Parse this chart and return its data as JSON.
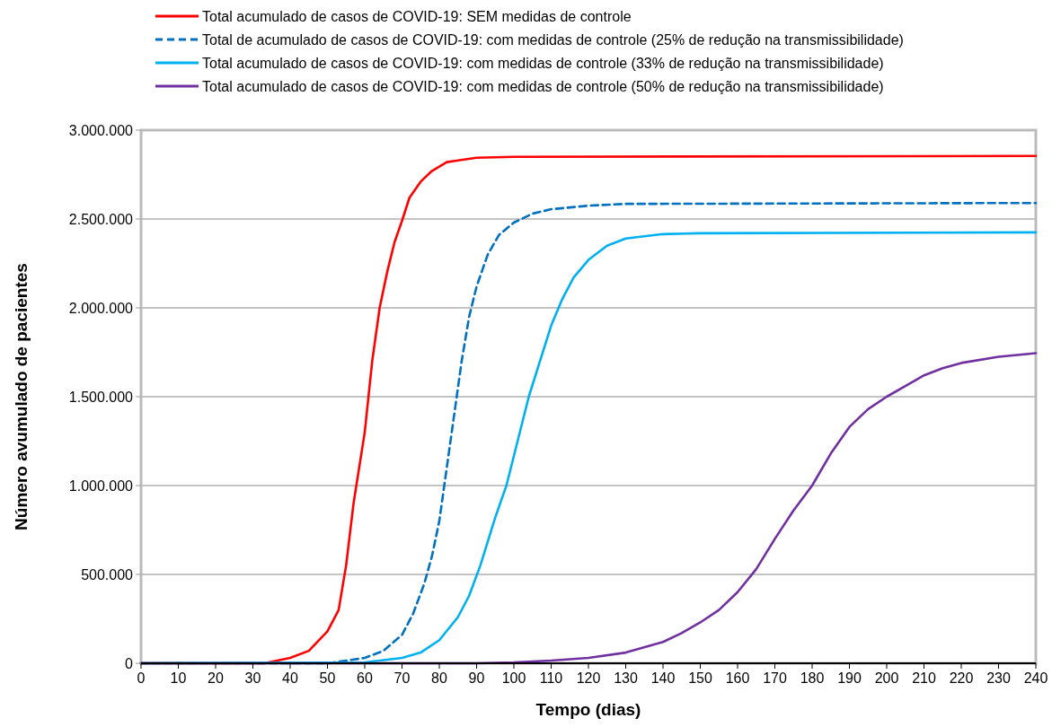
{
  "chart_data": {
    "type": "line",
    "xlabel": "Tempo (dias)",
    "ylabel": "Número avumulado de pacientes",
    "xlim": [
      0,
      240
    ],
    "xticks": [
      0,
      10,
      20,
      30,
      40,
      50,
      60,
      70,
      80,
      90,
      100,
      110,
      120,
      130,
      140,
      150,
      160,
      170,
      180,
      190,
      200,
      210,
      220,
      230,
      240
    ],
    "ylim": [
      0,
      3000000
    ],
    "yticks": [
      {
        "value": 0,
        "label": "0"
      },
      {
        "value": 500000,
        "label": "500.000"
      },
      {
        "value": 1000000,
        "label": "1.000.000"
      },
      {
        "value": 1500000,
        "label": "1.500.000"
      },
      {
        "value": 2000000,
        "label": "2.000.000"
      },
      {
        "value": 2500000,
        "label": "2.500.000"
      },
      {
        "value": 3000000,
        "label": "3.000.000"
      }
    ],
    "grid": "y",
    "legend": "top",
    "marker": "none",
    "series": [
      {
        "name": "Total acumulado de casos de COVID-19: SEM medidas de controle",
        "color": "#ff0000",
        "line_style": "solid",
        "x": [
          0,
          33,
          40,
          45,
          50,
          53,
          55,
          57,
          60,
          62,
          64,
          66,
          68,
          70,
          72,
          75,
          78,
          82,
          90,
          100,
          240
        ],
        "values": [
          0,
          0,
          30000,
          70000,
          180000,
          300000,
          550000,
          900000,
          1300000,
          1700000,
          2000000,
          2200000,
          2370000,
          2490000,
          2620000,
          2710000,
          2770000,
          2820000,
          2845000,
          2850000,
          2855000
        ]
      },
      {
        "name": "Total de acumulado de casos de COVID-19: com medidas de controle (25% de redução na transmissibilidade)",
        "color": "#0070c0",
        "line_style": "dashed",
        "x": [
          0,
          50,
          60,
          65,
          70,
          73,
          76,
          78,
          80,
          82,
          84,
          86,
          88,
          90,
          93,
          96,
          100,
          105,
          110,
          120,
          130,
          240
        ],
        "values": [
          0,
          0,
          30000,
          70000,
          160000,
          280000,
          450000,
          600000,
          800000,
          1100000,
          1400000,
          1700000,
          1950000,
          2120000,
          2300000,
          2410000,
          2480000,
          2530000,
          2555000,
          2575000,
          2585000,
          2590000
        ]
      },
      {
        "name": "Total acumulado de casos de COVID-19: com medidas de controle (33% de redução na transmissibilidade)",
        "color": "#00b0f0",
        "line_style": "solid",
        "x": [
          0,
          60,
          70,
          75,
          80,
          85,
          88,
          91,
          95,
          98,
          101,
          104,
          107,
          110,
          113,
          116,
          120,
          125,
          130,
          140,
          150,
          240
        ],
        "values": [
          0,
          5000,
          30000,
          60000,
          130000,
          260000,
          380000,
          550000,
          820000,
          1000000,
          1250000,
          1500000,
          1700000,
          1900000,
          2050000,
          2170000,
          2270000,
          2350000,
          2390000,
          2415000,
          2420000,
          2425000
        ]
      },
      {
        "name": "Total acumulado de casos de COVID-19: com medidas de controle (50% de redução na transmissibilidade)",
        "color": "#7030a0",
        "line_style": "solid",
        "x": [
          0,
          90,
          100,
          110,
          120,
          130,
          140,
          145,
          150,
          155,
          160,
          165,
          170,
          175,
          180,
          185,
          190,
          195,
          200,
          205,
          210,
          215,
          220,
          230,
          240
        ],
        "values": [
          0,
          0,
          5000,
          15000,
          30000,
          60000,
          120000,
          170000,
          230000,
          300000,
          400000,
          530000,
          700000,
          860000,
          1000000,
          1180000,
          1330000,
          1430000,
          1500000,
          1560000,
          1620000,
          1660000,
          1690000,
          1725000,
          1745000
        ]
      }
    ]
  }
}
